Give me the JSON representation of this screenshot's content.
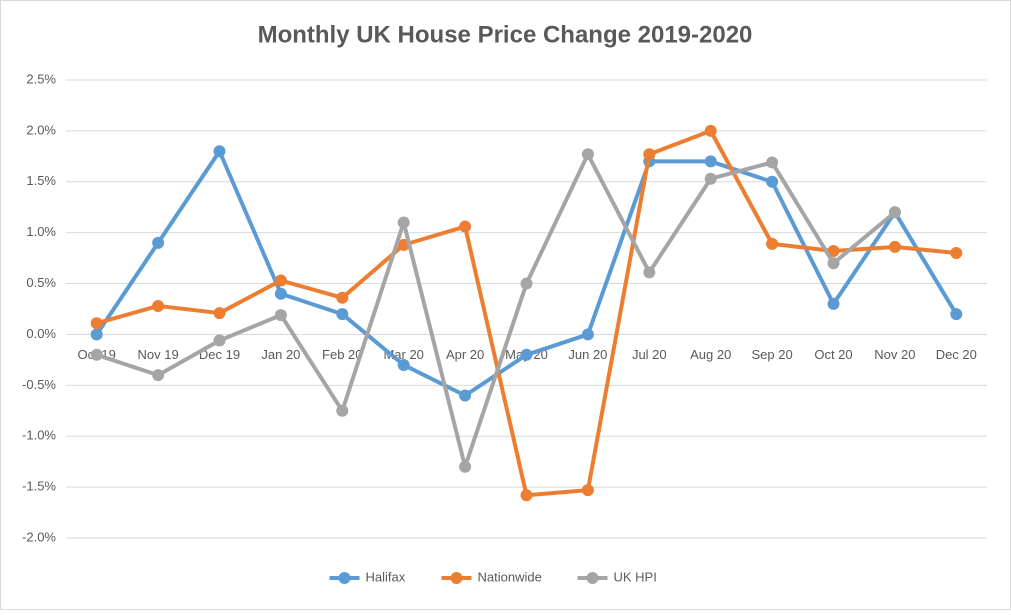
{
  "chart_data": {
    "type": "line",
    "title": "Monthly UK House Price Change 2019-2020",
    "categories": [
      "Oct 19",
      "Nov 19",
      "Dec 19",
      "Jan 20",
      "Feb 20",
      "Mar 20",
      "Apr 20",
      "May 20",
      "Jun 20",
      "Jul 20",
      "Aug 20",
      "Sep 20",
      "Oct 20",
      "Nov 20",
      "Dec 20"
    ],
    "series": [
      {
        "name": "Halifax",
        "color": "#5b9bd5",
        "values": [
          0.0,
          0.9,
          1.8,
          0.4,
          0.2,
          -0.3,
          -0.6,
          -0.2,
          0.0,
          1.7,
          1.7,
          1.5,
          0.3,
          1.2,
          0.2
        ]
      },
      {
        "name": "Nationwide",
        "color": "#ed7d31",
        "values": [
          0.11,
          0.28,
          0.21,
          0.53,
          0.36,
          0.88,
          1.06,
          -1.58,
          -1.53,
          1.77,
          2.0,
          0.89,
          0.82,
          0.86,
          0.8
        ]
      },
      {
        "name": "UK HPI",
        "color": "#a5a5a5",
        "values": [
          -0.2,
          -0.4,
          -0.06,
          0.19,
          -0.75,
          1.1,
          -1.3,
          0.5,
          1.77,
          0.61,
          1.53,
          1.69,
          0.7,
          1.2,
          null
        ]
      }
    ],
    "ylim": [
      -2.0,
      2.5
    ],
    "yticks": [
      {
        "value": -2.0,
        "label": "-2.0%"
      },
      {
        "value": -1.5,
        "label": "-1.5%"
      },
      {
        "value": -1.0,
        "label": "-1.0%"
      },
      {
        "value": -0.5,
        "label": "-0.5%"
      },
      {
        "value": 0.0,
        "label": "0.0%"
      },
      {
        "value": 0.5,
        "label": "0.5%"
      },
      {
        "value": 1.0,
        "label": "1.0%"
      },
      {
        "value": 1.5,
        "label": "1.5%"
      },
      {
        "value": 2.0,
        "label": "2.0%"
      },
      {
        "value": 2.5,
        "label": "2.5%"
      }
    ],
    "grid": true,
    "legend": "bottom"
  }
}
